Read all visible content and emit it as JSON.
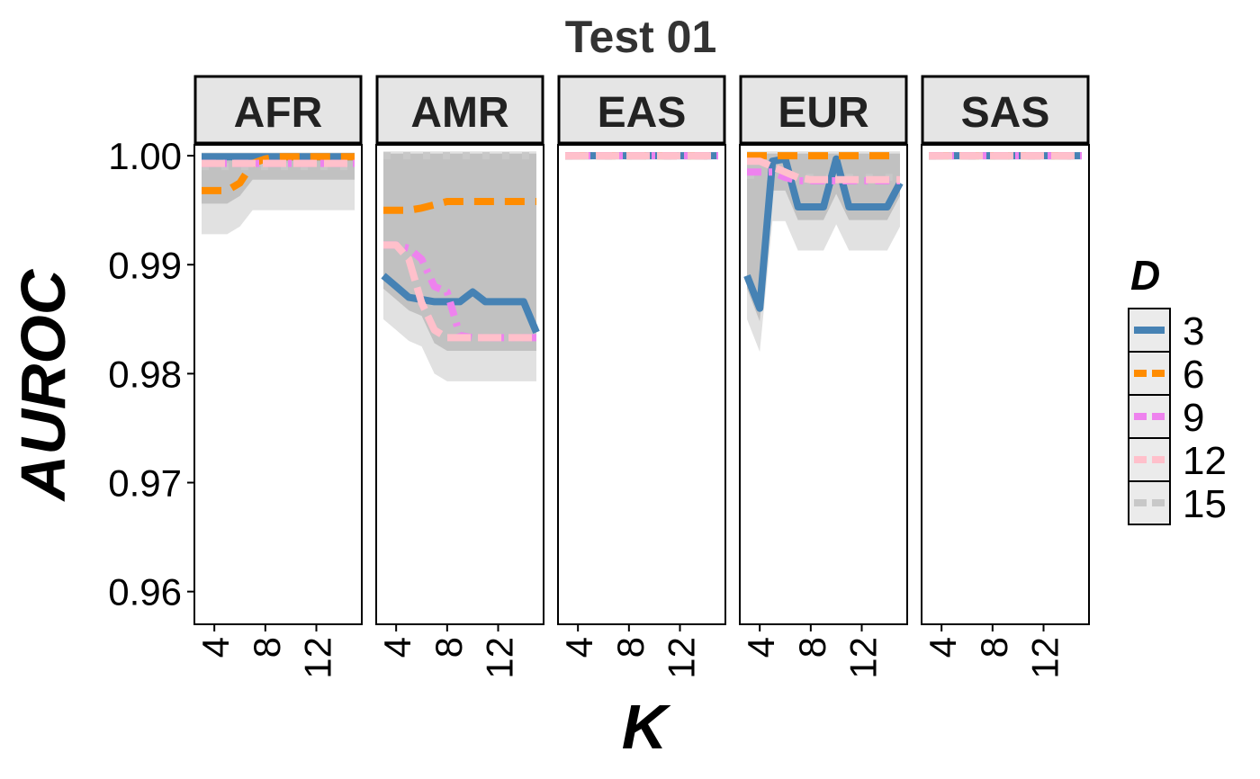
{
  "chart_data": {
    "type": "line",
    "title": "Test 01",
    "xlabel": "K",
    "ylabel": "AUROC",
    "xlim": [
      3,
      15
    ],
    "ylim": [
      0.957,
      1.001
    ],
    "x_ticks": [
      4,
      8,
      12
    ],
    "x_tick_labels": [
      "4",
      "8",
      "12"
    ],
    "y_ticks": [
      0.96,
      0.97,
      0.98,
      0.99,
      1.0
    ],
    "y_tick_labels": [
      "0.96",
      "0.97",
      "0.98",
      "0.99",
      "1.00"
    ],
    "grid": false,
    "legend": {
      "title": "D",
      "position": "right",
      "entries": [
        {
          "label": "3",
          "color": "#4682B4"
        },
        {
          "label": "6",
          "color": "#FF8C00"
        },
        {
          "label": "9",
          "color": "#EE82EE"
        },
        {
          "label": "12",
          "color": "#FFC0CB"
        },
        {
          "label": "15",
          "color": "#C8C8C8"
        }
      ]
    },
    "k_values": [
      3,
      4,
      5,
      6,
      7,
      8,
      9,
      10,
      11,
      12,
      13,
      14,
      15
    ],
    "panels": [
      {
        "name": "AFR",
        "series": [
          {
            "name": "3",
            "values": [
              0.9999,
              0.9999,
              0.9999,
              0.9999,
              0.9999,
              0.9999,
              0.9999,
              0.9999,
              0.9999,
              0.9999,
              0.9999,
              0.9999,
              0.9999
            ]
          },
          {
            "name": "6",
            "values": [
              0.9968,
              0.9968,
              0.9968,
              0.9975,
              0.9993,
              0.9997,
              0.9999,
              0.9999,
              0.9999,
              0.9999,
              0.9999,
              0.9999,
              0.9999
            ]
          },
          {
            "name": "9",
            "values": [
              0.9993,
              0.9993,
              0.9993,
              0.9993,
              0.9993,
              0.9993,
              0.9993,
              0.9993,
              0.9993,
              0.9993,
              0.9993,
              0.9993,
              0.9993
            ]
          },
          {
            "name": "12",
            "values": [
              0.9993,
              0.9993,
              0.9993,
              0.9993,
              0.9993,
              0.9993,
              0.9993,
              0.9993,
              0.9993,
              0.9993,
              0.9993,
              0.9993,
              0.9993
            ]
          },
          {
            "name": "15",
            "values": [
              0.999,
              0.999,
              0.999,
              0.999,
              0.999,
              0.999,
              0.999,
              0.999,
              0.999,
              0.999,
              0.999,
              0.999,
              0.999
            ]
          }
        ]
      },
      {
        "name": "AMR",
        "series": [
          {
            "name": "3",
            "values": [
              0.989,
              0.988,
              0.987,
              0.9868,
              0.9866,
              0.9866,
              0.9866,
              0.9875,
              0.9866,
              0.9866,
              0.9866,
              0.9866,
              0.9838
            ]
          },
          {
            "name": "6",
            "values": [
              0.995,
              0.995,
              0.995,
              0.9952,
              0.9955,
              0.9958,
              0.9958,
              0.9958,
              0.9958,
              0.9958,
              0.9958,
              0.9958,
              0.9958
            ]
          },
          {
            "name": "9",
            "values": [
              0.9918,
              0.9918,
              0.9915,
              0.9905,
              0.988,
              0.9875,
              0.9835,
              0.9833,
              0.9833,
              0.9833,
              0.9833,
              0.9833,
              0.9833
            ]
          },
          {
            "name": "12",
            "values": [
              0.9918,
              0.9918,
              0.9905,
              0.9865,
              0.984,
              0.9833,
              0.9833,
              0.9833,
              0.9833,
              0.9833,
              0.9833,
              0.9833,
              0.9833
            ]
          },
          {
            "name": "15",
            "values": [
              1.0,
              1.0,
              1.0,
              1.0,
              1.0,
              1.0,
              1.0,
              1.0,
              1.0,
              1.0,
              1.0,
              1.0,
              1.0
            ]
          }
        ]
      },
      {
        "name": "EAS",
        "series": [
          {
            "name": "3",
            "values": [
              1.0,
              1.0,
              1.0,
              1.0,
              1.0,
              1.0,
              1.0,
              1.0,
              1.0,
              1.0,
              1.0,
              1.0,
              1.0
            ]
          },
          {
            "name": "6",
            "values": [
              1.0,
              1.0,
              1.0,
              1.0,
              1.0,
              1.0,
              1.0,
              1.0,
              1.0,
              1.0,
              1.0,
              1.0,
              1.0
            ]
          },
          {
            "name": "9",
            "values": [
              1.0,
              1.0,
              1.0,
              1.0,
              1.0,
              1.0,
              1.0,
              1.0,
              1.0,
              1.0,
              1.0,
              1.0,
              1.0
            ]
          },
          {
            "name": "12",
            "values": [
              1.0,
              1.0,
              1.0,
              1.0,
              1.0,
              1.0,
              1.0,
              1.0,
              1.0,
              1.0,
              1.0,
              1.0,
              1.0
            ]
          },
          {
            "name": "15",
            "values": [
              1.0,
              1.0,
              1.0,
              1.0,
              1.0,
              1.0,
              1.0,
              1.0,
              1.0,
              1.0,
              1.0,
              1.0,
              1.0
            ]
          }
        ]
      },
      {
        "name": "EUR",
        "series": [
          {
            "name": "3",
            "values": [
              0.989,
              0.986,
              0.9995,
              0.9997,
              0.9953,
              0.9953,
              0.9953,
              0.9997,
              0.9953,
              0.9953,
              0.9953,
              0.9953,
              0.9975
            ]
          },
          {
            "name": "6",
            "values": [
              1.0,
              1.0,
              1.0,
              1.0,
              1.0,
              1.0,
              1.0,
              1.0,
              1.0,
              1.0,
              1.0,
              1.0,
              1.0
            ]
          },
          {
            "name": "9",
            "values": [
              0.9985,
              0.9985,
              0.9985,
              0.998,
              0.9977,
              0.9977,
              0.9977,
              0.9977,
              0.9977,
              0.9977,
              0.9977,
              0.9977,
              0.9977
            ]
          },
          {
            "name": "12",
            "values": [
              0.9995,
              0.9995,
              0.999,
              0.9985,
              0.998,
              0.9978,
              0.9978,
              0.9978,
              0.9978,
              0.9978,
              0.9978,
              0.9978,
              0.9978
            ]
          },
          {
            "name": "15",
            "values": [
              0.9982,
              0.9982,
              0.998,
              0.998,
              0.998,
              0.998,
              0.998,
              0.998,
              0.998,
              0.998,
              0.998,
              0.998,
              0.998
            ]
          }
        ]
      },
      {
        "name": "SAS",
        "series": [
          {
            "name": "3",
            "values": [
              1.0,
              1.0,
              1.0,
              1.0,
              1.0,
              1.0,
              1.0,
              1.0,
              1.0,
              1.0,
              1.0,
              1.0,
              1.0
            ]
          },
          {
            "name": "6",
            "values": [
              1.0,
              1.0,
              1.0,
              1.0,
              1.0,
              1.0,
              1.0,
              1.0,
              1.0,
              1.0,
              1.0,
              1.0,
              1.0
            ]
          },
          {
            "name": "9",
            "values": [
              1.0,
              1.0,
              1.0,
              1.0,
              1.0,
              1.0,
              1.0,
              1.0,
              1.0,
              1.0,
              1.0,
              1.0,
              1.0
            ]
          },
          {
            "name": "12",
            "values": [
              1.0,
              1.0,
              1.0,
              1.0,
              1.0,
              1.0,
              1.0,
              1.0,
              1.0,
              1.0,
              1.0,
              1.0,
              1.0
            ]
          },
          {
            "name": "15",
            "values": [
              1.0,
              1.0,
              1.0,
              1.0,
              1.0,
              1.0,
              1.0,
              1.0,
              1.0,
              1.0,
              1.0,
              1.0,
              1.0
            ]
          }
        ]
      }
    ]
  }
}
